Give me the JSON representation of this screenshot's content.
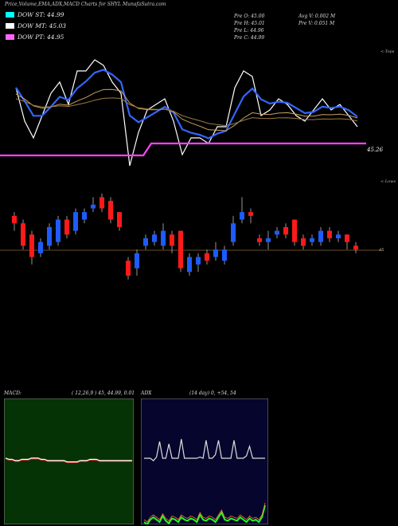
{
  "title": "Price,Volume,EMA,ADX,MACD Charts for SHYL MunafaSutra.com",
  "legend": [
    {
      "label": "DOW ST: 44.99",
      "color": "#00ffff"
    },
    {
      "label": "DOW MT: 45.03",
      "color": "#ffffff"
    },
    {
      "label": "DOW PT: 44.95",
      "color": "#ff66ff"
    }
  ],
  "info_left": [
    "Pre   O: 45.00",
    "Pre   H: 45.01",
    "Pre   L: 44.96",
    "Pre   C: 44.99"
  ],
  "info_right": [
    "Avg V: 0.002  M",
    "Pre   V: 0.051 M"
  ],
  "top_corner_label": "<-Tops",
  "lower_corner_label": "<-Lows",
  "last_price_label": "45.26",
  "candle_side_label": "45",
  "macd": {
    "label": "MACD:",
    "params": "( 12,26,9 ) 45, 44.99, 0.01"
  },
  "adx": {
    "label": "ADX",
    "params": "(14  day) 0, +54, 54"
  },
  "colors": {
    "up": "#1e5bff",
    "down": "#ff1a1a",
    "ema_fast": "#3366ff",
    "ema_slow": "#c8a060",
    "pt": "#ff44ff",
    "macd_bg": "#063306",
    "adx_bg": "#05052e"
  },
  "chart_data": [
    {
      "type": "candlestick",
      "note_series": "daily OHLC (approximate, price units)",
      "series": [
        {
          "name": "candles",
          "open": [
            45.07,
            45.05,
            45.02,
            44.97,
            44.99,
            45.0,
            45.06,
            45.03,
            45.06,
            45.09,
            45.12,
            45.11,
            45.08,
            44.95,
            44.93,
            44.99,
            45.0,
            44.99,
            45.02,
            45.03,
            44.92,
            44.94,
            44.97,
            44.96,
            44.95,
            45.0,
            45.06,
            45.08,
            45.01,
            45.0,
            45.02,
            45.04,
            45.06,
            45.01,
            45.0,
            45.0,
            45.03,
            45.01,
            45.02,
            44.99
          ],
          "close": [
            45.05,
            44.99,
            44.96,
            45.0,
            45.04,
            45.06,
            45.02,
            45.08,
            45.08,
            45.1,
            45.09,
            45.06,
            45.04,
            44.91,
            44.97,
            45.01,
            45.02,
            45.03,
            44.99,
            44.93,
            44.96,
            44.96,
            44.95,
            44.98,
            44.98,
            45.05,
            45.08,
            45.07,
            45.0,
            45.01,
            45.03,
            45.02,
            45.0,
            44.99,
            45.01,
            45.03,
            45.01,
            45.02,
            45.0,
            44.98
          ],
          "high": [
            45.08,
            45.06,
            45.03,
            45.01,
            45.05,
            45.07,
            45.07,
            45.09,
            45.09,
            45.12,
            45.13,
            45.12,
            45.08,
            44.96,
            44.98,
            45.02,
            45.03,
            45.05,
            45.03,
            45.03,
            44.97,
            44.97,
            44.98,
            45.0,
            44.99,
            45.07,
            45.12,
            45.09,
            45.02,
            45.03,
            45.04,
            45.05,
            45.06,
            45.02,
            45.02,
            45.04,
            45.04,
            45.03,
            45.02,
            45.0
          ],
          "low": [
            45.03,
            44.98,
            44.94,
            44.96,
            44.98,
            44.99,
            45.01,
            45.02,
            45.05,
            45.08,
            45.08,
            45.05,
            45.03,
            44.9,
            44.91,
            44.98,
            44.99,
            44.98,
            44.97,
            44.92,
            44.91,
            44.92,
            44.94,
            44.95,
            44.94,
            44.99,
            45.05,
            45.05,
            44.99,
            44.98,
            45.01,
            45.01,
            44.99,
            44.98,
            44.99,
            44.99,
            45.0,
            45.0,
            44.98,
            44.97
          ]
        }
      ]
    },
    {
      "type": "line",
      "series": [
        {
          "name": "macd_line",
          "values": [
            0.02,
            0.01,
            0.01,
            0.0,
            0.0,
            0.01,
            0.01,
            0.01,
            0.02,
            0.02,
            0.02,
            0.01,
            0.01,
            0.0,
            0.0,
            0.0,
            0.0,
            0.0,
            0.0,
            -0.01,
            -0.01,
            -0.01,
            -0.01,
            0.0,
            0.0,
            0.0,
            0.01,
            0.01,
            0.01,
            0.0,
            0.0,
            0.0,
            0.0,
            0.0,
            0.0,
            0.0,
            0.0,
            0.0,
            0.0,
            0.0
          ]
        }
      ]
    },
    {
      "type": "line",
      "series": [
        {
          "name": "adx",
          "values": [
            30,
            30,
            30,
            28,
            31,
            44,
            30,
            30,
            42,
            30,
            30,
            30,
            46,
            30,
            30,
            30,
            30,
            30,
            31,
            30,
            45,
            30,
            30,
            33,
            45,
            30,
            30,
            30,
            30,
            45,
            30,
            30,
            30,
            32,
            40,
            30,
            30,
            30,
            30,
            30
          ]
        },
        {
          "name": "+di",
          "values": [
            20,
            18,
            22,
            24,
            22,
            20,
            25,
            21,
            19,
            23,
            22,
            20,
            24,
            22,
            21,
            23,
            22,
            20,
            26,
            22,
            21,
            23,
            22,
            20,
            24,
            28,
            22,
            21,
            23,
            22,
            21,
            24,
            22,
            20,
            23,
            21,
            22,
            20,
            24,
            34
          ]
        }
      ]
    }
  ]
}
